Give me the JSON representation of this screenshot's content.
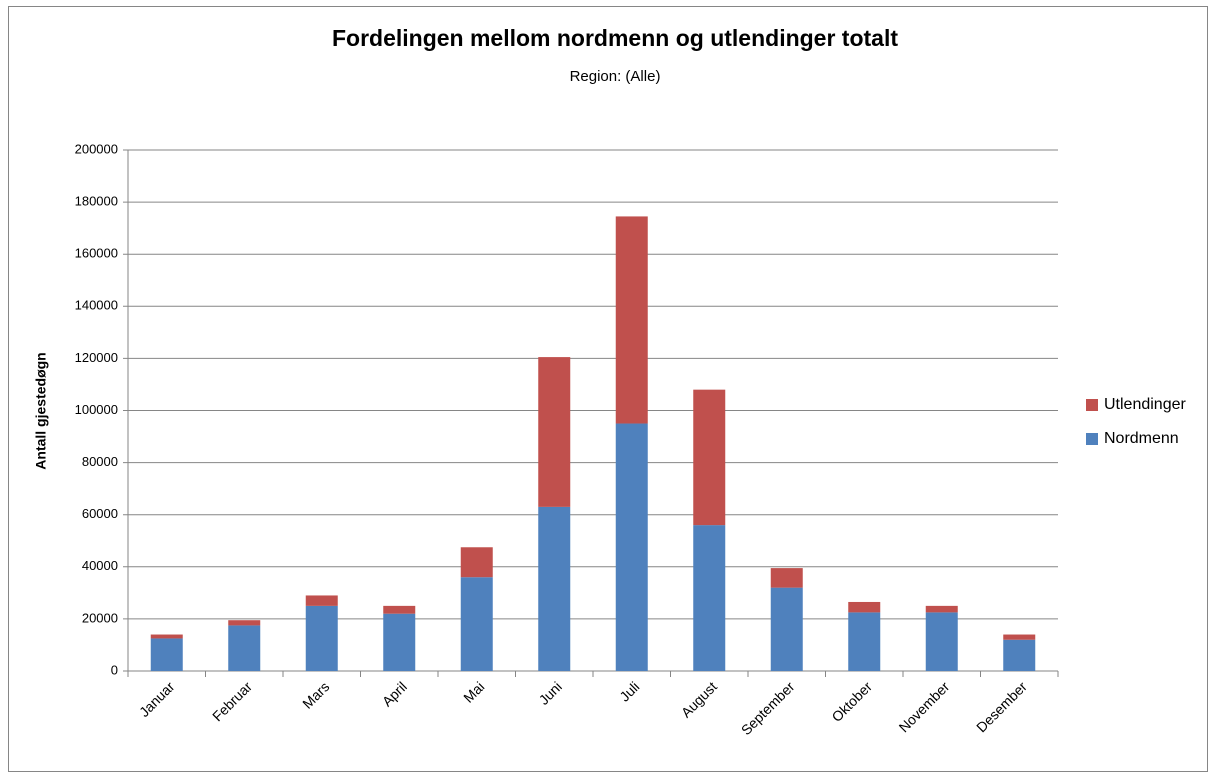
{
  "chart_data": {
    "type": "stacked_bar",
    "title": "Fordelingen mellom nordmenn og utlendinger totalt",
    "subtitle": "Region: (Alle)",
    "y_label": "Antall gjestedøgn",
    "categories": [
      "Januar",
      "Februar",
      "Mars",
      "April",
      "Mai",
      "Juni",
      "Juli",
      "August",
      "September",
      "Oktober",
      "November",
      "Desember"
    ],
    "series": [
      {
        "name": "Nordmenn",
        "color": "#4f81bd",
        "values": [
          12500,
          17500,
          25000,
          22000,
          36000,
          63000,
          95000,
          56000,
          32000,
          22500,
          22500,
          12000
        ]
      },
      {
        "name": "Utlendinger",
        "color": "#c0504d",
        "values": [
          1500,
          2000,
          4000,
          3000,
          11500,
          57500,
          79500,
          52000,
          7500,
          4000,
          2500,
          2000
        ]
      }
    ],
    "ylim": [
      0,
      200000
    ],
    "yticks": [
      0,
      20000,
      40000,
      60000,
      80000,
      100000,
      120000,
      140000,
      160000,
      180000,
      200000
    ],
    "grid": true,
    "legend": "right"
  }
}
